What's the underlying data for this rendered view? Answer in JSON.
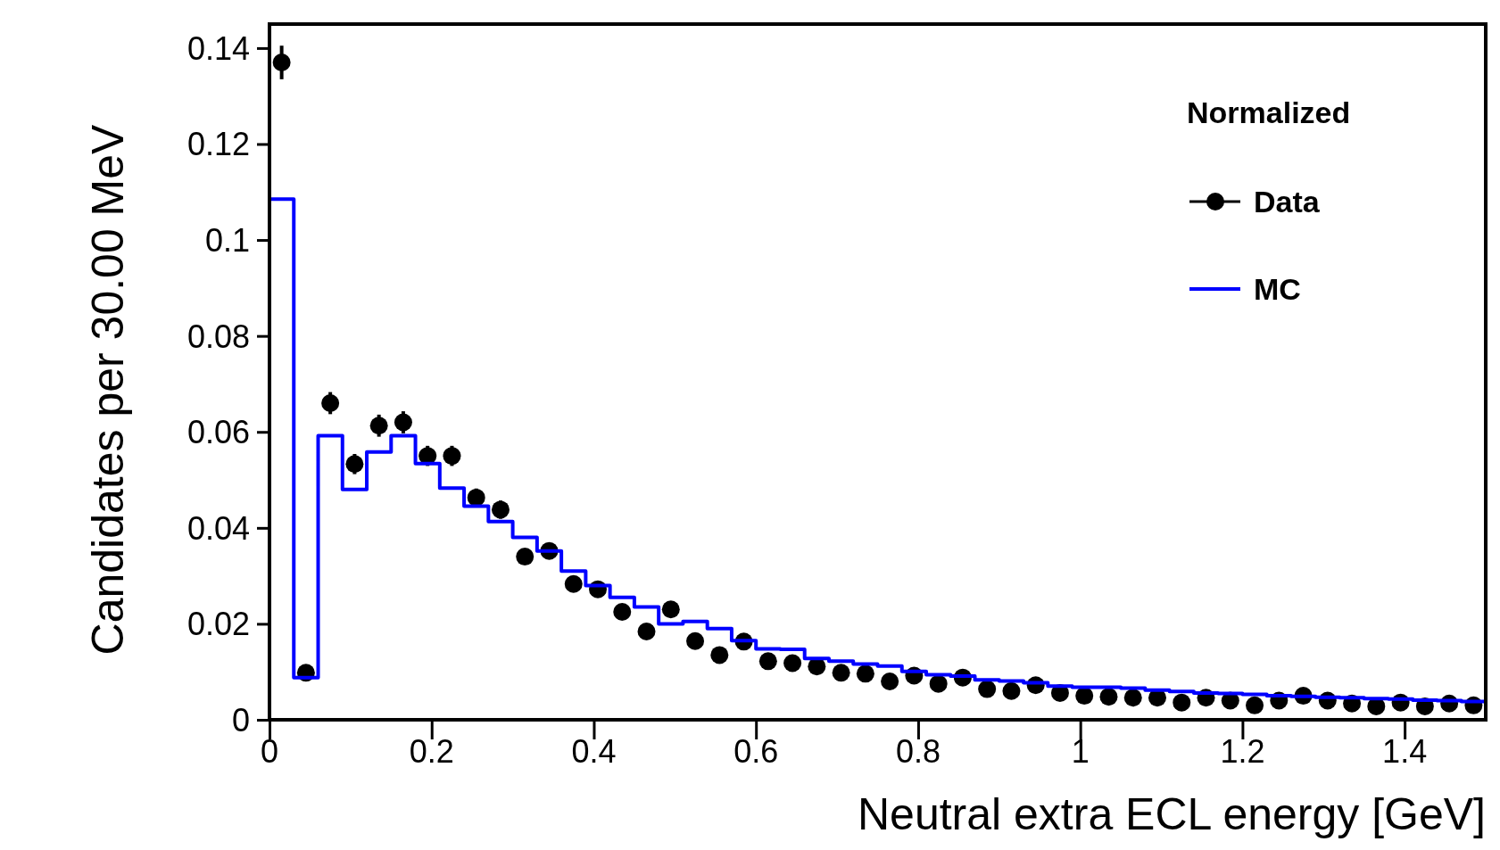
{
  "chart_data": {
    "type": "scatter",
    "xlabel": "Neutral extra ECL energy [GeV]",
    "ylabel": "Candidates per 30.00 MeV",
    "legend_title": "Normalized",
    "legend": "top right",
    "grid": false,
    "marker": "circle",
    "bins": [
      0,
      0.03,
      0.06,
      0.09,
      0.12,
      0.15,
      0.18,
      0.21,
      0.24,
      0.27,
      0.3,
      0.33,
      0.36,
      0.39,
      0.42,
      0.45,
      0.48,
      0.51,
      0.54,
      0.57,
      0.6,
      0.63,
      0.66,
      0.69,
      0.72,
      0.75,
      0.78,
      0.81,
      0.84,
      0.87,
      0.9,
      0.93,
      0.96,
      0.99,
      1.02,
      1.05,
      1.08,
      1.11,
      1.14,
      1.17,
      1.2,
      1.23,
      1.26,
      1.29,
      1.32,
      1.35,
      1.38,
      1.41,
      1.44,
      1.47,
      1.5
    ],
    "xlim": [
      0,
      1.5
    ],
    "ylim": [
      0,
      0.145
    ],
    "xticks": [
      0,
      0.2,
      0.4,
      0.6,
      0.8,
      1,
      1.2,
      1.4
    ],
    "yticks": [
      0,
      0.02,
      0.04,
      0.06,
      0.08,
      0.1,
      0.12,
      0.14
    ],
    "series": [
      {
        "name": "Data",
        "color": "#000000",
        "x": [
          0.015,
          0.045,
          0.075,
          0.105,
          0.135,
          0.165,
          0.195,
          0.225,
          0.255,
          0.285,
          0.315,
          0.345,
          0.375,
          0.405,
          0.435,
          0.465,
          0.495,
          0.525,
          0.555,
          0.585,
          0.615,
          0.645,
          0.675,
          0.705,
          0.735,
          0.765,
          0.795,
          0.825,
          0.855,
          0.885,
          0.915,
          0.945,
          0.975,
          1.005,
          1.035,
          1.065,
          1.095,
          1.125,
          1.155,
          1.185,
          1.215,
          1.245,
          1.275,
          1.305,
          1.335,
          1.365,
          1.395,
          1.425,
          1.455,
          1.485
        ],
        "values": [
          0.137,
          0.0098,
          0.066,
          0.0533,
          0.0613,
          0.062,
          0.055,
          0.055,
          0.0463,
          0.0438,
          0.034,
          0.0352,
          0.0283,
          0.0272,
          0.0225,
          0.0184,
          0.023,
          0.0164,
          0.0135,
          0.0163,
          0.0122,
          0.0118,
          0.0111,
          0.0098,
          0.0096,
          0.008,
          0.0092,
          0.0075,
          0.0088,
          0.0064,
          0.006,
          0.0072,
          0.0056,
          0.005,
          0.0048,
          0.0046,
          0.0046,
          0.0036,
          0.0046,
          0.004,
          0.003,
          0.004,
          0.005,
          0.004,
          0.0034,
          0.0028,
          0.0036,
          0.0028,
          0.0034,
          0.003
        ],
        "errors": [
          0.0035,
          null,
          0.0023,
          0.0021,
          0.0023,
          0.0023,
          0.0021,
          0.0021,
          0.0019,
          0.0019,
          null,
          null,
          null,
          null,
          null,
          null,
          null,
          null,
          null,
          null,
          null,
          null,
          null,
          null,
          null,
          null,
          null,
          null,
          null,
          null,
          null,
          null,
          null,
          null,
          null,
          null,
          null,
          null,
          null,
          null,
          null,
          null,
          null,
          null,
          null,
          null,
          null,
          null,
          null,
          null
        ]
      },
      {
        "name": "MC",
        "type": "histogram",
        "color": "#0000ff",
        "values": [
          0.1085,
          0.0088,
          0.0592,
          0.048,
          0.0558,
          0.0592,
          0.0534,
          0.0483,
          0.0445,
          0.0413,
          0.038,
          0.0352,
          0.031,
          0.028,
          0.0255,
          0.0235,
          0.02,
          0.0205,
          0.019,
          0.0165,
          0.0148,
          0.0147,
          0.0128,
          0.0122,
          0.0116,
          0.0112,
          0.0101,
          0.0094,
          0.0091,
          0.0083,
          0.0081,
          0.0077,
          0.007,
          0.0068,
          0.0068,
          0.0066,
          0.0062,
          0.0059,
          0.0056,
          0.0055,
          0.0053,
          0.005,
          0.0049,
          0.0047,
          0.0046,
          0.0044,
          0.0043,
          0.0041,
          0.004,
          0.0038
        ]
      }
    ]
  }
}
